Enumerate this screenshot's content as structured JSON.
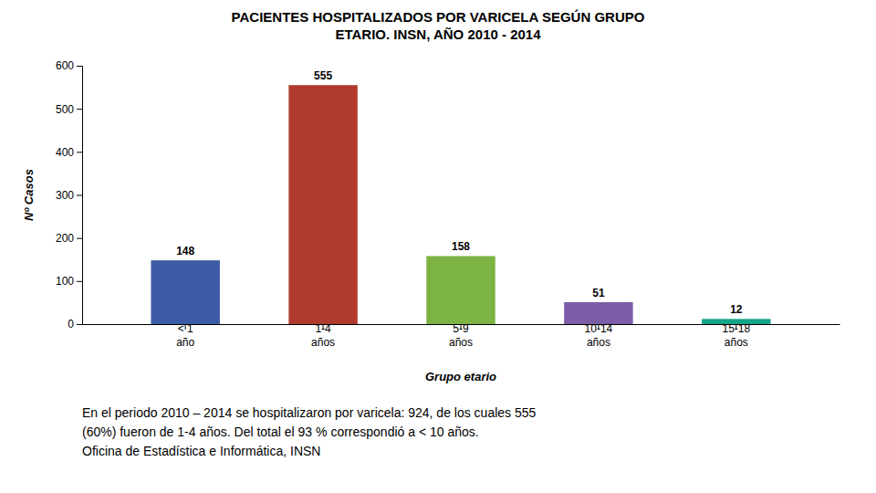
{
  "chart_data": {
    "type": "bar",
    "title": "PACIENTES HOSPITALIZADOS POR VARICELA SEGÚN GRUPO\nETARIO. INSN, AÑO 2010 - 2014",
    "categories": [
      "< 1\naño",
      "1-4\naños",
      "5-9\naños",
      "10-14\naños",
      "15-18\naños"
    ],
    "values": [
      148,
      555,
      158,
      51,
      12
    ],
    "colors": [
      "#3B5BA5",
      "#B03A2E",
      "#7CB342",
      "#7B5EA7",
      "#17A589"
    ],
    "xlabel": "Grupo etario",
    "ylabel": "Nº Casos",
    "annotation": "En el periodo 2010 – 2014 se hospitalizaron por varicela: 924, de los cuales 555\n(60%) fueron de 1-4 años. Del total el 93 % correspondió a < 10 años.\nOficina de Estadística e Informática, INSN",
    "ylim": [
      0,
      600
    ],
    "yticks": [
      0,
      100,
      200,
      300,
      400,
      500,
      600
    ],
    "grid": false,
    "data_labels": true
  }
}
